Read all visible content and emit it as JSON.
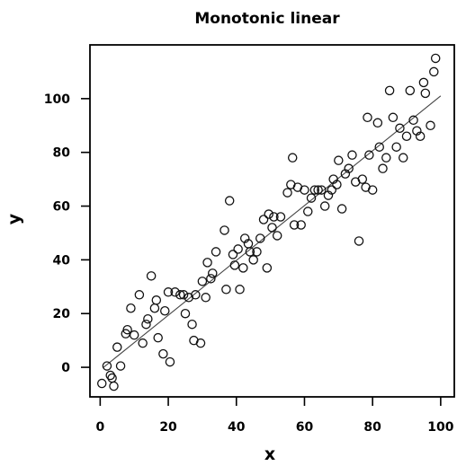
{
  "chart_data": {
    "type": "scatter",
    "title": "Monotonic linear",
    "xlabel": "x",
    "ylabel": "y",
    "xlim": [
      -3,
      104
    ],
    "ylim": [
      -11,
      120
    ],
    "xticks": [
      0,
      20,
      40,
      60,
      80,
      100
    ],
    "yticks": [
      0,
      20,
      40,
      60,
      80,
      100
    ],
    "grid": false,
    "fit_line": {
      "x": [
        1,
        100
      ],
      "y": [
        0,
        101
      ]
    },
    "points": [
      {
        "x": 0.5,
        "y": -6
      },
      {
        "x": 2,
        "y": 0.5
      },
      {
        "x": 3,
        "y": -3
      },
      {
        "x": 3.5,
        "y": -4
      },
      {
        "x": 4,
        "y": -7
      },
      {
        "x": 5,
        "y": 7.5
      },
      {
        "x": 6,
        "y": 0.5
      },
      {
        "x": 7.5,
        "y": 12.5
      },
      {
        "x": 8,
        "y": 14
      },
      {
        "x": 9,
        "y": 22
      },
      {
        "x": 10,
        "y": 12
      },
      {
        "x": 11.5,
        "y": 27
      },
      {
        "x": 12.5,
        "y": 9
      },
      {
        "x": 13.5,
        "y": 16
      },
      {
        "x": 14,
        "y": 18
      },
      {
        "x": 15,
        "y": 34
      },
      {
        "x": 16,
        "y": 22
      },
      {
        "x": 16.5,
        "y": 25
      },
      {
        "x": 17,
        "y": 11
      },
      {
        "x": 18.5,
        "y": 5
      },
      {
        "x": 19,
        "y": 21
      },
      {
        "x": 20,
        "y": 28
      },
      {
        "x": 20.5,
        "y": 2
      },
      {
        "x": 22,
        "y": 28
      },
      {
        "x": 23.5,
        "y": 27
      },
      {
        "x": 24.5,
        "y": 27
      },
      {
        "x": 25,
        "y": 20
      },
      {
        "x": 26,
        "y": 26
      },
      {
        "x": 27,
        "y": 16
      },
      {
        "x": 27.5,
        "y": 10
      },
      {
        "x": 28,
        "y": 27
      },
      {
        "x": 29.5,
        "y": 9
      },
      {
        "x": 30,
        "y": 32
      },
      {
        "x": 31,
        "y": 26
      },
      {
        "x": 31.5,
        "y": 39
      },
      {
        "x": 32.5,
        "y": 33
      },
      {
        "x": 33,
        "y": 35
      },
      {
        "x": 34,
        "y": 43
      },
      {
        "x": 36.5,
        "y": 51
      },
      {
        "x": 37,
        "y": 29
      },
      {
        "x": 38,
        "y": 62
      },
      {
        "x": 39,
        "y": 42
      },
      {
        "x": 39.5,
        "y": 38
      },
      {
        "x": 40.5,
        "y": 44
      },
      {
        "x": 41,
        "y": 29
      },
      {
        "x": 42,
        "y": 37
      },
      {
        "x": 42.5,
        "y": 48
      },
      {
        "x": 43.5,
        "y": 46
      },
      {
        "x": 44,
        "y": 43
      },
      {
        "x": 45,
        "y": 40
      },
      {
        "x": 46,
        "y": 43
      },
      {
        "x": 47,
        "y": 48
      },
      {
        "x": 48,
        "y": 55
      },
      {
        "x": 49,
        "y": 37
      },
      {
        "x": 49.5,
        "y": 57
      },
      {
        "x": 50.5,
        "y": 52
      },
      {
        "x": 51,
        "y": 56
      },
      {
        "x": 52,
        "y": 49
      },
      {
        "x": 53,
        "y": 56
      },
      {
        "x": 55,
        "y": 65
      },
      {
        "x": 56,
        "y": 68
      },
      {
        "x": 56.5,
        "y": 78
      },
      {
        "x": 57,
        "y": 53
      },
      {
        "x": 58,
        "y": 67
      },
      {
        "x": 59,
        "y": 53
      },
      {
        "x": 60,
        "y": 66
      },
      {
        "x": 61,
        "y": 58
      },
      {
        "x": 62,
        "y": 63
      },
      {
        "x": 63,
        "y": 66
      },
      {
        "x": 64,
        "y": 66
      },
      {
        "x": 65,
        "y": 66
      },
      {
        "x": 66,
        "y": 60
      },
      {
        "x": 67,
        "y": 64
      },
      {
        "x": 68,
        "y": 66
      },
      {
        "x": 68.5,
        "y": 70
      },
      {
        "x": 69.5,
        "y": 68
      },
      {
        "x": 70,
        "y": 77
      },
      {
        "x": 71,
        "y": 59
      },
      {
        "x": 72,
        "y": 72
      },
      {
        "x": 73,
        "y": 74
      },
      {
        "x": 74,
        "y": 79
      },
      {
        "x": 75,
        "y": 69
      },
      {
        "x": 76,
        "y": 47
      },
      {
        "x": 77,
        "y": 70
      },
      {
        "x": 78,
        "y": 67
      },
      {
        "x": 78.5,
        "y": 93
      },
      {
        "x": 79,
        "y": 79
      },
      {
        "x": 80,
        "y": 66
      },
      {
        "x": 81.5,
        "y": 91
      },
      {
        "x": 82,
        "y": 82
      },
      {
        "x": 83,
        "y": 74
      },
      {
        "x": 84,
        "y": 78
      },
      {
        "x": 85,
        "y": 103
      },
      {
        "x": 86,
        "y": 93
      },
      {
        "x": 87,
        "y": 82
      },
      {
        "x": 88,
        "y": 89
      },
      {
        "x": 89,
        "y": 78
      },
      {
        "x": 90,
        "y": 86
      },
      {
        "x": 91,
        "y": 103
      },
      {
        "x": 92,
        "y": 92
      },
      {
        "x": 93,
        "y": 88
      },
      {
        "x": 94,
        "y": 86
      },
      {
        "x": 95,
        "y": 106
      },
      {
        "x": 95.5,
        "y": 102
      },
      {
        "x": 97,
        "y": 90
      },
      {
        "x": 98,
        "y": 110
      },
      {
        "x": 98.5,
        "y": 115
      }
    ]
  }
}
